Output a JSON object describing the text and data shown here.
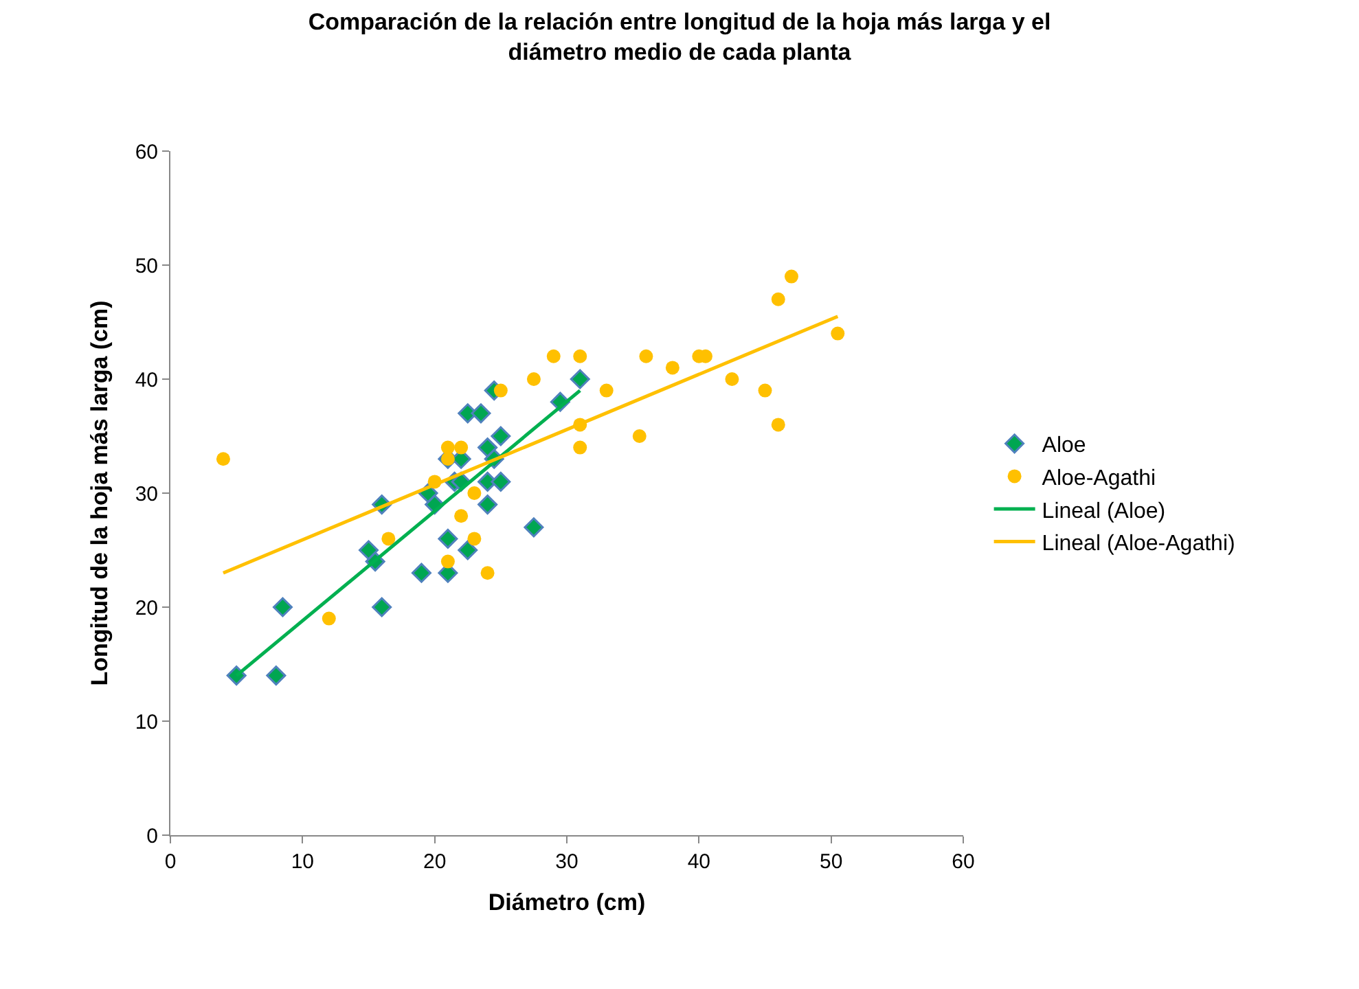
{
  "chart_data": {
    "type": "scatter",
    "title": "Comparación de la relación entre longitud de la hoja más larga y el diámetro medio de cada planta",
    "xlabel": "Diámetro (cm)",
    "ylabel": "Longitud de la hoja más larga (cm)",
    "xlim": [
      0,
      60
    ],
    "xticks": [
      0,
      10,
      20,
      30,
      40,
      50,
      60
    ],
    "ylim": [
      0,
      60
    ],
    "yticks": [
      0,
      10,
      20,
      30,
      40,
      50,
      60
    ],
    "legend": "right",
    "series": [
      {
        "name": "Aloe",
        "marker": "diamond",
        "color": "#00a651",
        "x": [
          5,
          8,
          8.5,
          15,
          15.5,
          16,
          16,
          19,
          19.5,
          20,
          21,
          21,
          21,
          21.5,
          22,
          22,
          22.5,
          22.5,
          23.5,
          24,
          24,
          24,
          24.5,
          25,
          25,
          24.5,
          27.5,
          29.5,
          31
        ],
        "values": [
          14,
          14,
          20,
          25,
          24,
          29,
          20,
          23,
          30,
          29,
          33,
          26,
          23,
          31,
          33,
          31,
          37,
          25,
          37,
          34,
          31,
          29,
          39,
          35,
          31,
          33,
          27,
          38,
          40
        ]
      },
      {
        "name": "Aloe-Agathi",
        "marker": "circle",
        "color": "#ffc000",
        "x": [
          4,
          12,
          16.5,
          20,
          21,
          21,
          21,
          22,
          22,
          23,
          23,
          24,
          25,
          27.5,
          29,
          31,
          31,
          31,
          33,
          35.5,
          36,
          38,
          40,
          40.5,
          42.5,
          45,
          46,
          46,
          47,
          50.5
        ],
        "values": [
          33,
          19,
          26,
          31,
          34,
          33,
          24,
          34,
          28,
          30,
          26,
          23,
          39,
          40,
          42,
          42,
          36,
          34,
          39,
          35,
          42,
          41,
          42,
          42,
          40,
          39,
          47,
          36,
          49,
          44
        ]
      },
      {
        "name": "Lineal (Aloe)",
        "type": "line",
        "marker": "none",
        "color": "#00b050",
        "x": [
          5,
          31
        ],
        "values": [
          14,
          39
        ]
      },
      {
        "name": "Lineal (Aloe-Agathi)",
        "type": "line",
        "marker": "none",
        "color": "#ffc000",
        "x": [
          4,
          50.5
        ],
        "values": [
          23,
          45.5
        ]
      }
    ]
  }
}
